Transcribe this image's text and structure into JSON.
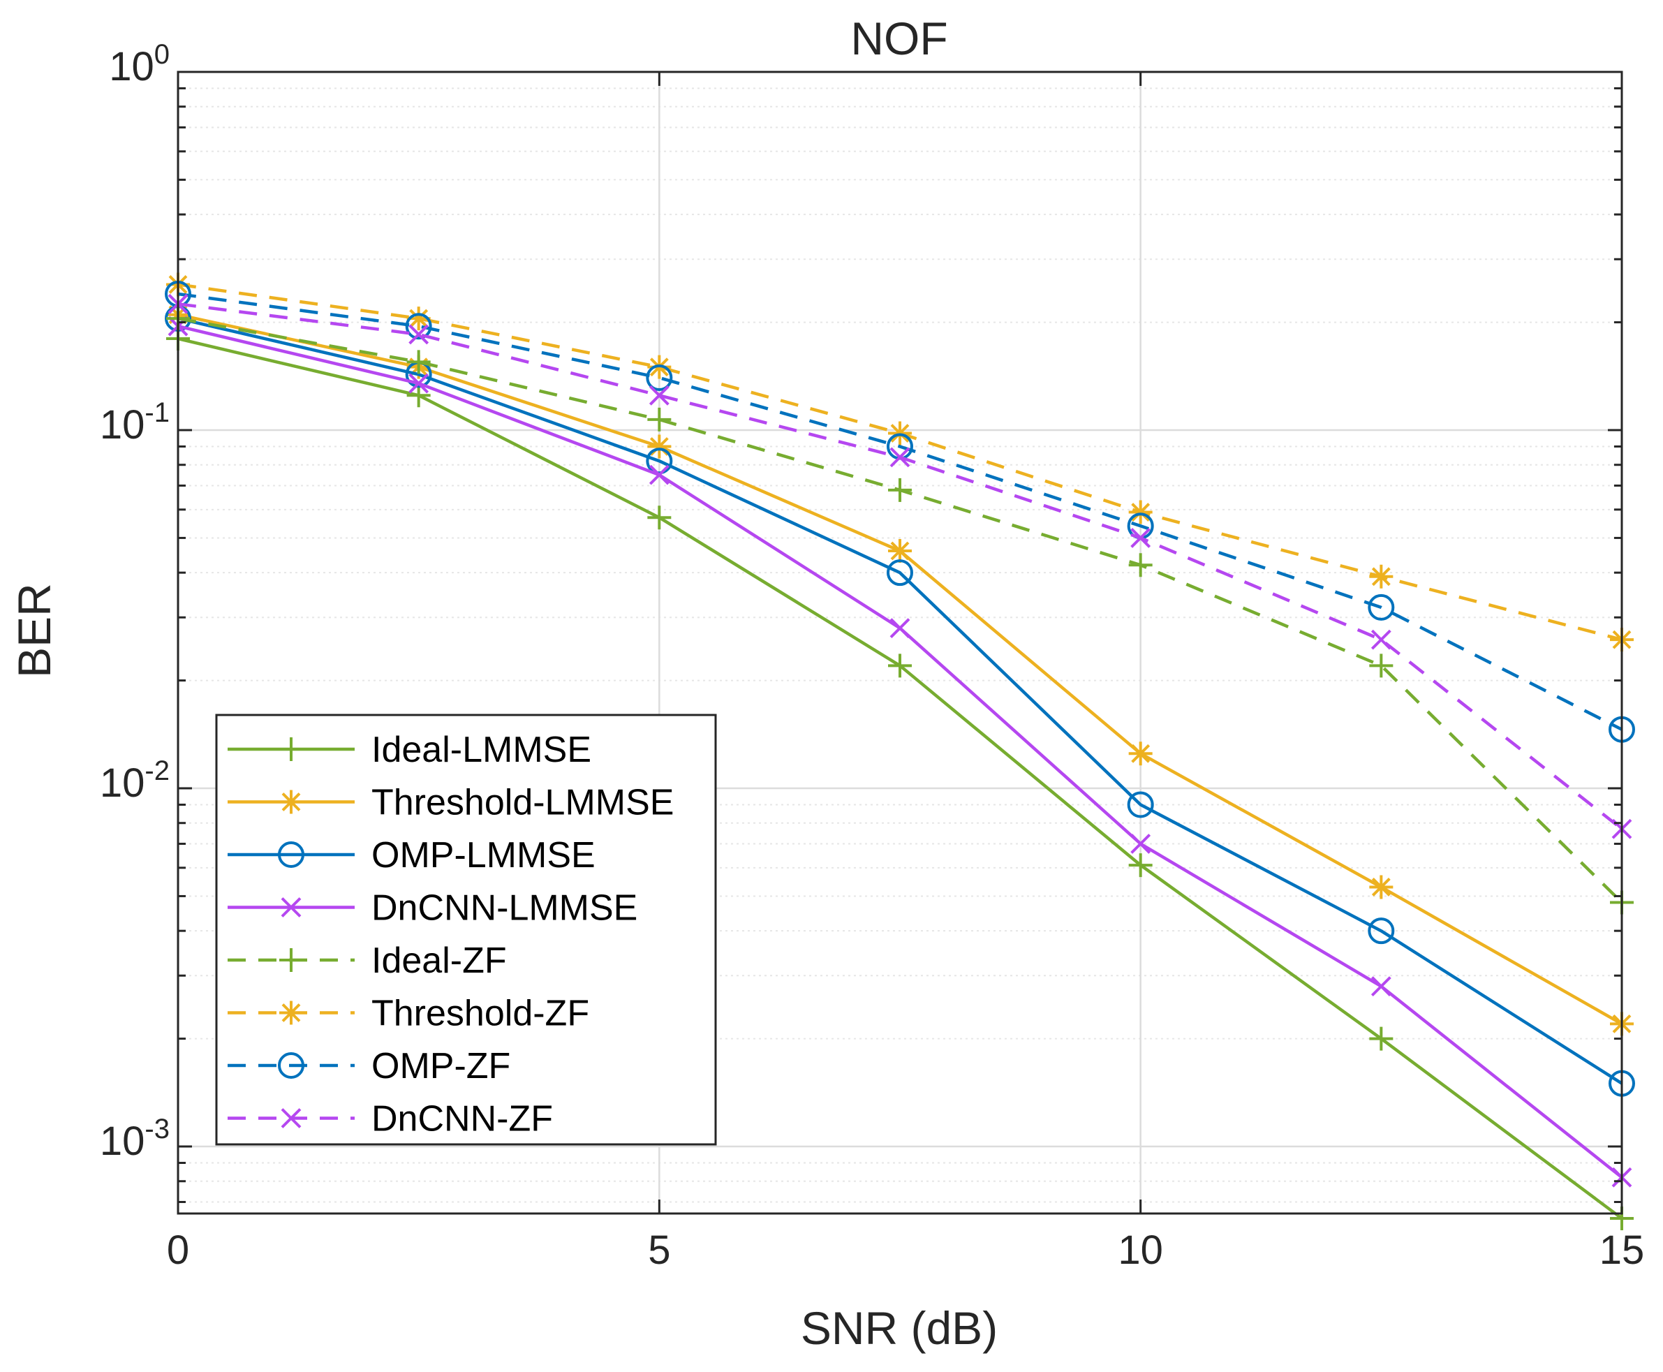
{
  "chart_data": {
    "type": "line",
    "title": "NOF",
    "xlabel": "SNR (dB)",
    "ylabel": "BER",
    "x": [
      0,
      2.5,
      5,
      7.5,
      10,
      12.5,
      15
    ],
    "xlim": [
      0,
      15
    ],
    "ylim": [
      0.00065,
      1
    ],
    "yscale": "log",
    "grid": true,
    "legend_location": "lower-left",
    "x_ticks": [
      {
        "value": 0,
        "label": "0"
      },
      {
        "value": 5,
        "label": "5"
      },
      {
        "value": 10,
        "label": "10"
      },
      {
        "value": 15,
        "label": "15"
      }
    ],
    "y_ticks": [
      {
        "value": 1,
        "base": "10",
        "exp": "0"
      },
      {
        "value": 0.1,
        "base": "10",
        "exp": "-1"
      },
      {
        "value": 0.01,
        "base": "10",
        "exp": "-2"
      },
      {
        "value": 0.001,
        "base": "10",
        "exp": "-3"
      }
    ],
    "series": [
      {
        "name": "Ideal-LMMSE",
        "color": "#77AC30",
        "dash": "solid",
        "marker": "plus",
        "values": [
          0.18,
          0.125,
          0.057,
          0.022,
          0.0061,
          0.002,
          0.00063
        ]
      },
      {
        "name": "Threshold-LMMSE",
        "color": "#EDB120",
        "dash": "solid",
        "marker": "asterisk",
        "values": [
          0.21,
          0.15,
          0.09,
          0.046,
          0.0125,
          0.0053,
          0.0022
        ]
      },
      {
        "name": "OMP-LMMSE",
        "color": "#0072BD",
        "dash": "solid",
        "marker": "circle",
        "values": [
          0.205,
          0.143,
          0.082,
          0.04,
          0.009,
          0.004,
          0.0015
        ]
      },
      {
        "name": "DnCNN-LMMSE",
        "color": "#B547F0",
        "dash": "solid",
        "marker": "x",
        "values": [
          0.195,
          0.135,
          0.075,
          0.028,
          0.007,
          0.0028,
          0.00082
        ]
      },
      {
        "name": "Ideal-ZF",
        "color": "#77AC30",
        "dash": "dashed",
        "marker": "plus",
        "values": [
          0.205,
          0.155,
          0.107,
          0.068,
          0.042,
          0.022,
          0.0048
        ]
      },
      {
        "name": "Threshold-ZF",
        "color": "#EDB120",
        "dash": "dashed",
        "marker": "asterisk",
        "values": [
          0.255,
          0.205,
          0.15,
          0.098,
          0.059,
          0.039,
          0.026
        ]
      },
      {
        "name": "OMP-ZF",
        "color": "#0072BD",
        "dash": "dashed",
        "marker": "circle",
        "values": [
          0.24,
          0.195,
          0.14,
          0.09,
          0.054,
          0.032,
          0.0146
        ]
      },
      {
        "name": "DnCNN-ZF",
        "color": "#B547F0",
        "dash": "dashed",
        "marker": "x",
        "values": [
          0.225,
          0.185,
          0.125,
          0.084,
          0.05,
          0.026,
          0.0077
        ]
      }
    ]
  }
}
